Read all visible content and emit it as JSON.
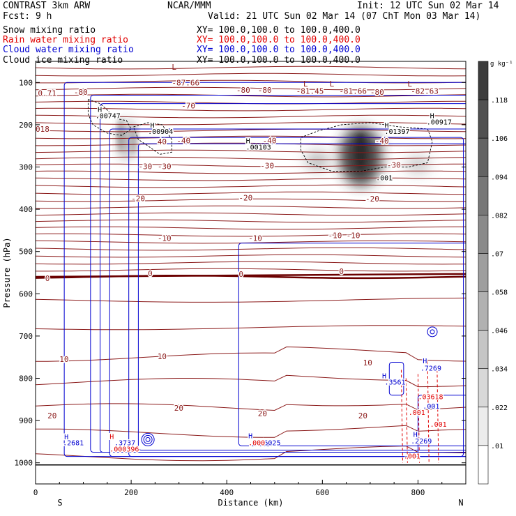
{
  "header": {
    "model": "CONTRAST  3km ARW",
    "center": "NCAR/MMM",
    "init": "Init: 12 UTC Sun 02 Mar 14",
    "fcst": "Fcst:   9 h",
    "valid": "Valid: 21 UTC Sun 02 Mar 14 (07 ChT Mon 03 Mar 14)",
    "fields": [
      {
        "label": "Snow mixing ratio",
        "xy": "",
        "color": "#000000"
      },
      {
        "label": "Rain water mixing ratio",
        "xy": "XY=  100.0,100.0 to 100.0,400.0",
        "color": "#e00000"
      },
      {
        "label": "Cloud water mixing ratio",
        "xy": "XY=  100.0,100.0 to 100.0,400.0",
        "color": "#0000d0"
      },
      {
        "label": "Cloud ice mixing ratio",
        "xy": "XY=  100.0,100.0 to 100.0,400.0",
        "color": "#000000"
      }
    ],
    "xy_snow": "XY=  100.0,100.0 to 100.0,400.0"
  },
  "chart_data": {
    "type": "contour",
    "title": "Vertical cross section, CONTRAST 3km ARW",
    "xlabel": "Distance (km)",
    "ylabel": "Pressure (hPa)",
    "xlim": [
      0,
      900
    ],
    "ylim": [
      1050,
      50
    ],
    "x_ticks": [
      0,
      200,
      400,
      600,
      800
    ],
    "y_ticks": [
      100,
      200,
      300,
      400,
      500,
      600,
      700,
      800,
      900,
      1000
    ],
    "x_end_labels": {
      "left": "S",
      "right": "N"
    },
    "colorbar": {
      "unit": "g kg⁻¹",
      "ticks": [
        ".118",
        ".106",
        ".094",
        ".082",
        ".07",
        ".058",
        ".046",
        ".034",
        ".022",
        ".01"
      ],
      "values": [
        0.118,
        0.106,
        0.094,
        0.082,
        0.07,
        0.058,
        0.046,
        0.034,
        0.022,
        0.01
      ]
    },
    "temperature_labels": [
      {
        "x": 5,
        "p": 125,
        "text": "0.71"
      },
      {
        "x": 80,
        "p": 123,
        "text": "-80"
      },
      {
        "x": 285,
        "p": 100,
        "text": "-87.66"
      },
      {
        "x": 420,
        "p": 118,
        "text": "-80"
      },
      {
        "x": 465,
        "p": 118,
        "text": "-80"
      },
      {
        "x": 545,
        "p": 120,
        "text": "-81.45"
      },
      {
        "x": 635,
        "p": 120,
        "text": "-81.66"
      },
      {
        "x": 700,
        "p": 123,
        "text": "-80"
      },
      {
        "x": 785,
        "p": 120,
        "text": "-82.63"
      },
      {
        "x": 305,
        "p": 155,
        "text": "-70"
      },
      {
        "x": 0,
        "p": 210,
        "text": "018"
      },
      {
        "x": 255,
        "p": 240,
        "text": "40"
      },
      {
        "x": 295,
        "p": 237,
        "text": "-40"
      },
      {
        "x": 475,
        "p": 237,
        "text": "-40"
      },
      {
        "x": 710,
        "p": 238,
        "text": "-40"
      },
      {
        "x": 215,
        "p": 298,
        "text": "-30"
      },
      {
        "x": 255,
        "p": 298,
        "text": "-30"
      },
      {
        "x": 470,
        "p": 297,
        "text": "-30"
      },
      {
        "x": 735,
        "p": 295,
        "text": "-30"
      },
      {
        "x": 200,
        "p": 374,
        "text": "-20"
      },
      {
        "x": 425,
        "p": 373,
        "text": "-20"
      },
      {
        "x": 690,
        "p": 375,
        "text": "-20"
      },
      {
        "x": 255,
        "p": 468,
        "text": "-10"
      },
      {
        "x": 445,
        "p": 468,
        "text": "-10"
      },
      {
        "x": 612,
        "p": 462,
        "text": "-10"
      },
      {
        "x": 650,
        "p": 462,
        "text": "-10"
      },
      {
        "x": 20,
        "p": 563,
        "text": "0"
      },
      {
        "x": 235,
        "p": 552,
        "text": "0"
      },
      {
        "x": 425,
        "p": 553,
        "text": "0"
      },
      {
        "x": 635,
        "p": 547,
        "text": "0"
      },
      {
        "x": 50,
        "p": 755,
        "text": "10"
      },
      {
        "x": 255,
        "p": 748,
        "text": "10"
      },
      {
        "x": 685,
        "p": 763,
        "text": "10"
      },
      {
        "x": 25,
        "p": 888,
        "text": "20"
      },
      {
        "x": 290,
        "p": 870,
        "text": "20"
      },
      {
        "x": 465,
        "p": 883,
        "text": "20"
      },
      {
        "x": 675,
        "p": 888,
        "text": "20"
      }
    ],
    "highs_lows": [
      {
        "x": 285,
        "p": 63,
        "text": "L"
      },
      {
        "x": 560,
        "p": 103,
        "text": "L"
      },
      {
        "x": 615,
        "p": 103,
        "text": "L"
      },
      {
        "x": 778,
        "p": 103,
        "text": "L"
      }
    ],
    "ice_labels": [
      {
        "x": 130,
        "p": 163,
        "text": "H"
      },
      {
        "x": 125,
        "p": 178,
        "text": ".00747"
      },
      {
        "x": 240,
        "p": 200,
        "text": "H"
      },
      {
        "x": 235,
        "p": 215,
        "text": ".00904"
      },
      {
        "x": 440,
        "p": 237,
        "text": "H"
      },
      {
        "x": 440,
        "p": 252,
        "text": ".00103"
      },
      {
        "x": 730,
        "p": 200,
        "text": "H"
      },
      {
        "x": 730,
        "p": 215,
        "text": ".01397"
      },
      {
        "x": 825,
        "p": 178,
        "text": "H"
      },
      {
        "x": 818,
        "p": 193,
        "text": ".00917"
      },
      {
        "x": 712,
        "p": 325,
        "text": ".001"
      }
    ],
    "cloud_water_labels": [
      {
        "x": 60,
        "p": 938,
        "text": "H"
      },
      {
        "x": 57,
        "p": 952,
        "text": ".2681"
      },
      {
        "x": 165,
        "p": 952,
        "text": ".3737"
      },
      {
        "x": 445,
        "p": 935,
        "text": "H"
      },
      {
        "x": 460,
        "p": 952,
        "text": ".46025"
      },
      {
        "x": 725,
        "p": 793,
        "text": "H"
      },
      {
        "x": 730,
        "p": 808,
        "text": ".3561"
      },
      {
        "x": 810,
        "p": 758,
        "text": "H"
      },
      {
        "x": 805,
        "p": 775,
        "text": ".7269"
      },
      {
        "x": 790,
        "p": 932,
        "text": "H"
      },
      {
        "x": 785,
        "p": 948,
        "text": ".2269"
      },
      {
        "x": 810,
        "p": 865,
        "text": ".001"
      }
    ],
    "rain_labels": [
      {
        "x": 155,
        "p": 937,
        "text": "H"
      },
      {
        "x": 155,
        "p": 967,
        "text": ".000396"
      },
      {
        "x": 445,
        "p": 952,
        "text": ".000"
      },
      {
        "x": 770,
        "p": 983,
        "text": ".001"
      },
      {
        "x": 780,
        "p": 880,
        "text": ".001"
      },
      {
        "x": 825,
        "p": 908,
        "text": ".001"
      },
      {
        "x": 800,
        "p": 843,
        "text": ".03618"
      }
    ],
    "snow_blobs": [
      {
        "x": 680,
        "p": 275,
        "amount": 0.12
      },
      {
        "x": 190,
        "p": 235,
        "amount": 0.06
      },
      {
        "x": 590,
        "p": 285,
        "amount": 0.04
      },
      {
        "x": 800,
        "p": 295,
        "amount": 0.03
      }
    ]
  }
}
